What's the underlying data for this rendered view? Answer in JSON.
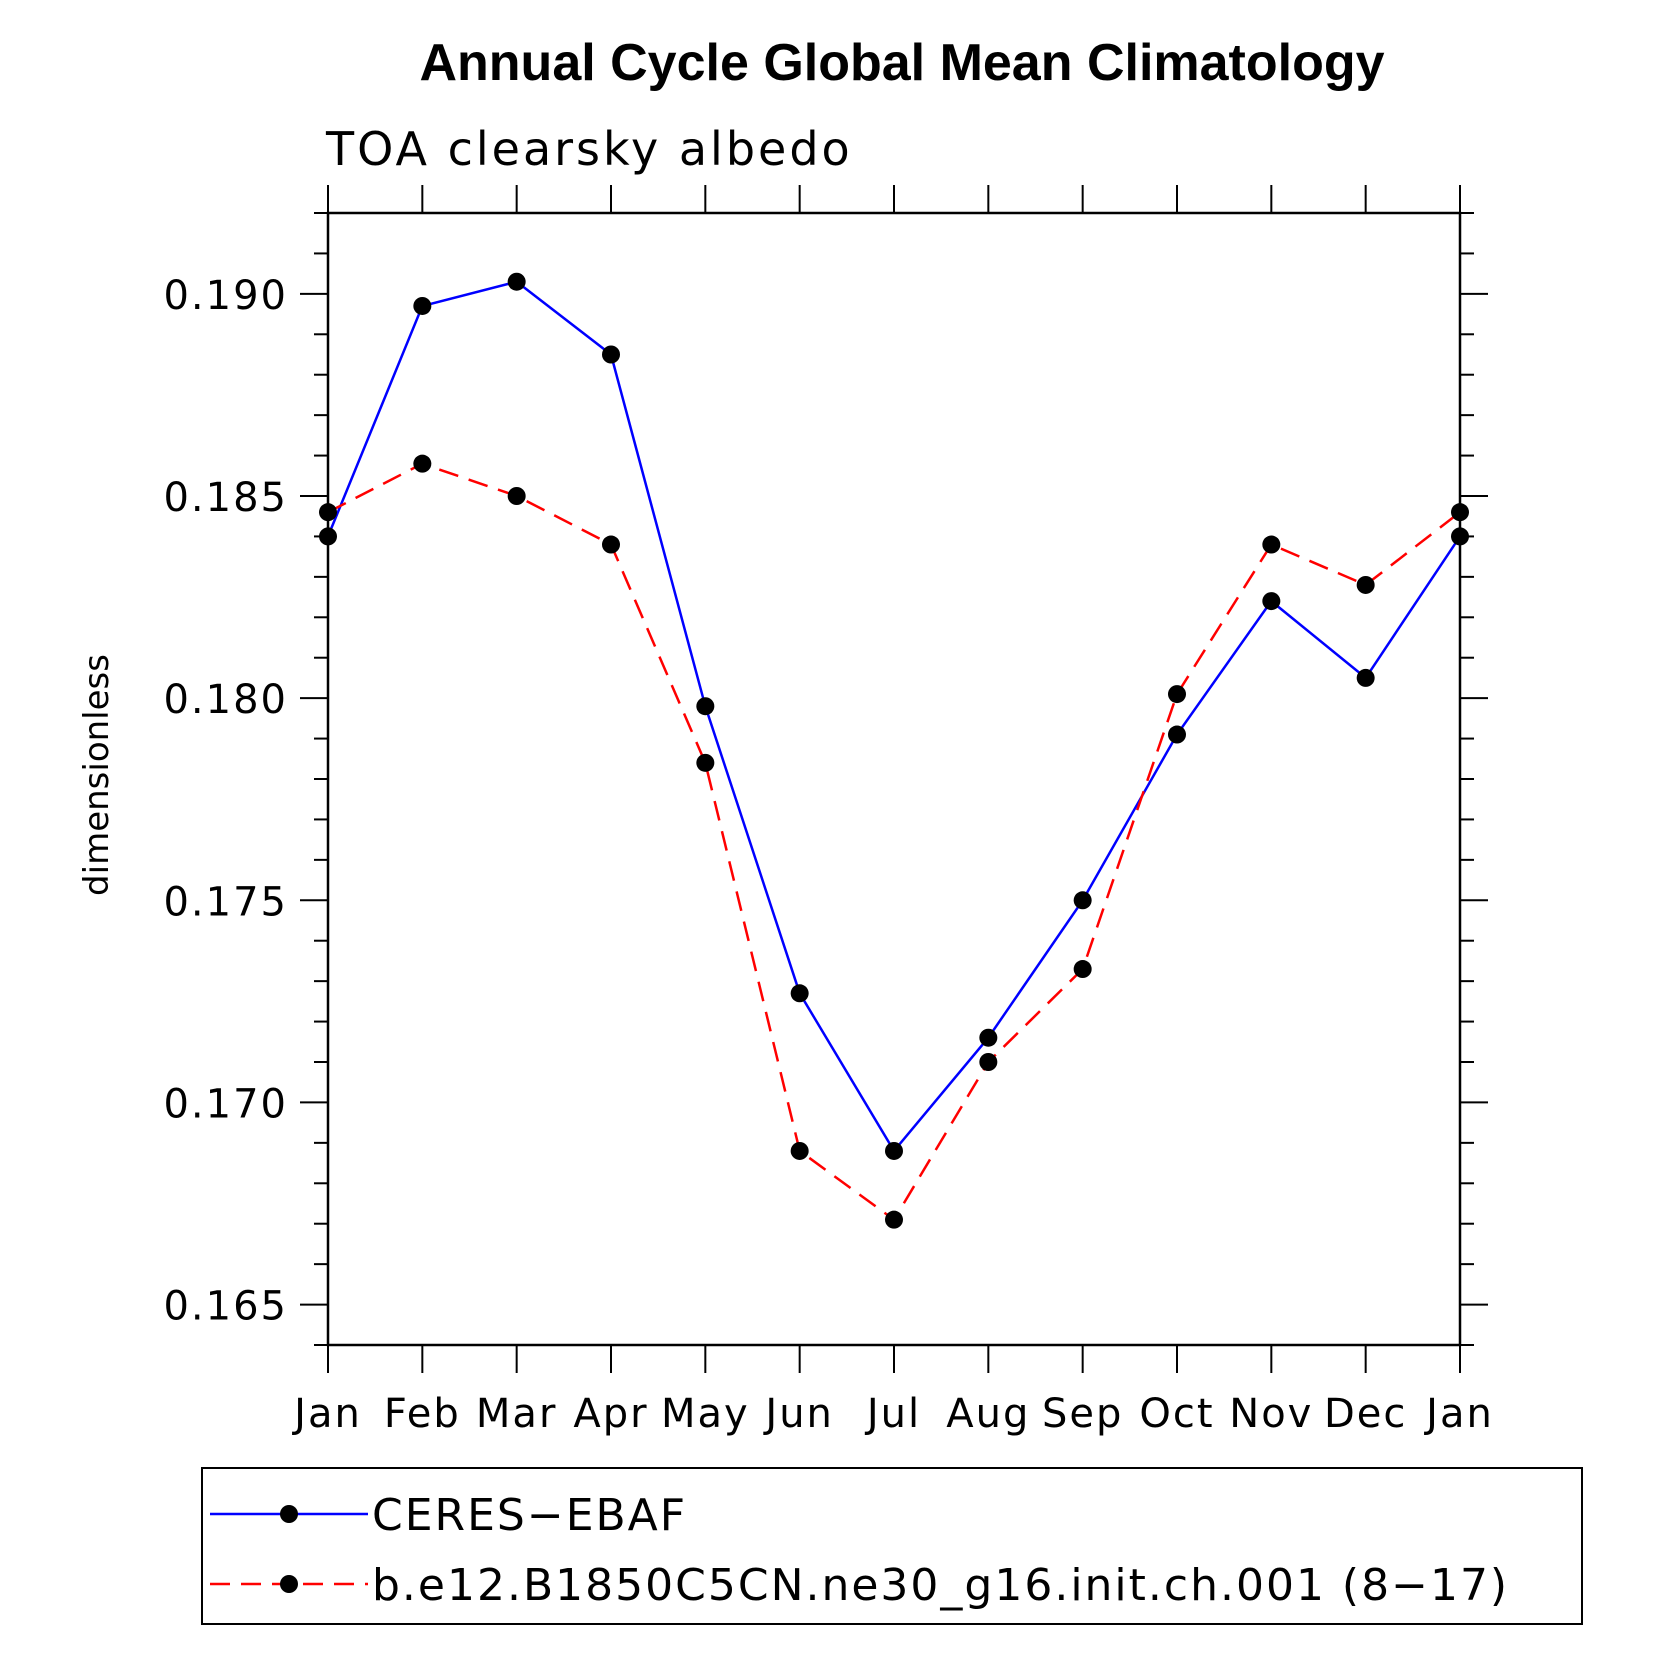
{
  "chart_data": {
    "type": "line",
    "title": "Annual Cycle Global Mean Climatology",
    "subtitle": "TOA clearsky albedo",
    "ylabel": "dimensionless",
    "xlabel": "",
    "categories": [
      "Jan",
      "Feb",
      "Mar",
      "Apr",
      "May",
      "Jun",
      "Jul",
      "Aug",
      "Sep",
      "Oct",
      "Nov",
      "Dec",
      "Jan"
    ],
    "ylim": [
      0.164,
      0.192
    ],
    "yticks": [
      "0.165",
      "0.170",
      "0.175",
      "0.180",
      "0.185",
      "0.190"
    ],
    "ytick_values": [
      0.165,
      0.17,
      0.175,
      0.18,
      0.185,
      0.19
    ],
    "grid": false,
    "legend_position": "bottom",
    "series": [
      {
        "name": "CERES−EBAF",
        "color": "#0000ff",
        "style": "solid",
        "marker": "filled-circle",
        "values": [
          0.184,
          0.1897,
          0.1903,
          0.1885,
          0.1798,
          0.1727,
          0.1688,
          0.1716,
          0.175,
          0.1791,
          0.1824,
          0.1805,
          0.184
        ]
      },
      {
        "name": "b.e12.B1850C5CN.ne30_g16.init.ch.001 (8−17)",
        "color": "#ff0000",
        "style": "dashed",
        "marker": "filled-circle",
        "values": [
          0.1846,
          0.1858,
          0.185,
          0.1838,
          0.1784,
          0.1688,
          0.1671,
          0.171,
          0.1733,
          0.1801,
          0.1838,
          0.1828,
          0.1846
        ]
      }
    ]
  }
}
